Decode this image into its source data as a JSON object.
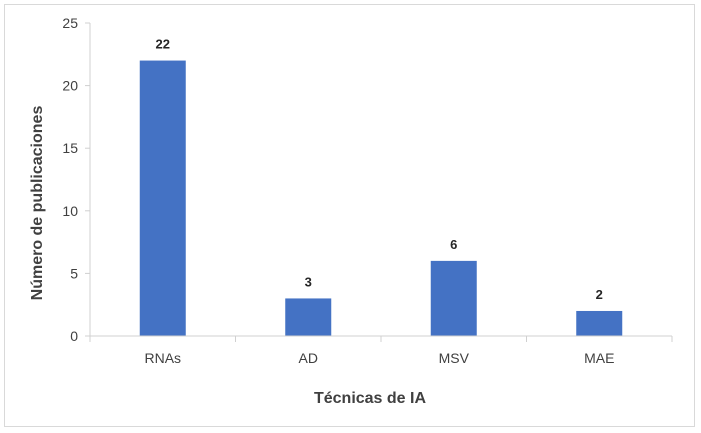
{
  "chart_data": {
    "type": "bar",
    "categories": [
      "RNAs",
      "AD",
      "MSV",
      "MAE"
    ],
    "values": [
      22,
      3,
      6,
      2
    ],
    "data_labels": [
      "22",
      "3",
      "6",
      "2"
    ],
    "title": "",
    "xlabel": "Técnicas de IA",
    "ylabel": "Número de publicaciones",
    "ylim": [
      0,
      25
    ],
    "yticks": [
      "0",
      "5",
      "10",
      "15",
      "20",
      "25"
    ],
    "grid": false,
    "legend": "none",
    "bar_color": "#4472C4",
    "axis_color": "#404040"
  }
}
